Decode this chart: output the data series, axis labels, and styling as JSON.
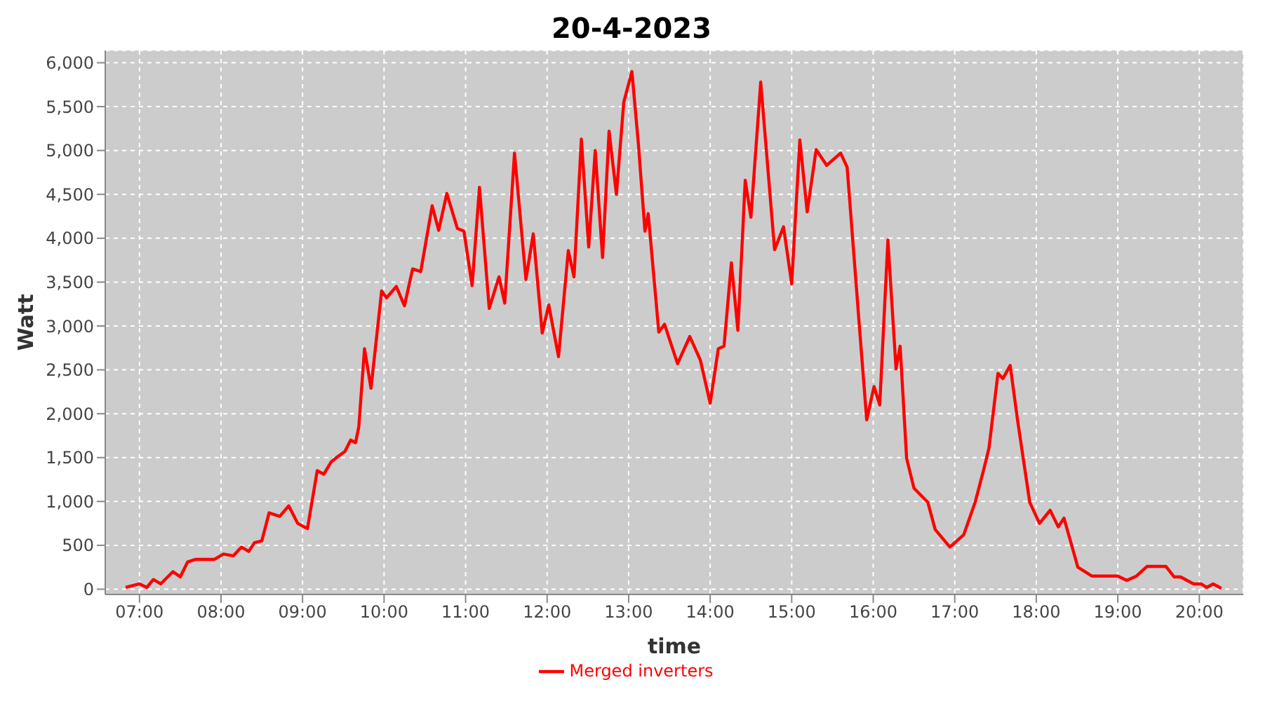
{
  "chart_data": {
    "type": "line",
    "title": "20-4-2023",
    "xlabel": "time",
    "ylabel": "Watt",
    "xlim": [
      6.58,
      20.54
    ],
    "ylim": [
      -60,
      6140
    ],
    "xticks": [
      {
        "value": 7,
        "label": "07:00"
      },
      {
        "value": 8,
        "label": "08:00"
      },
      {
        "value": 9,
        "label": "09:00"
      },
      {
        "value": 10,
        "label": "10:00"
      },
      {
        "value": 11,
        "label": "11:00"
      },
      {
        "value": 12,
        "label": "12:00"
      },
      {
        "value": 13,
        "label": "13:00"
      },
      {
        "value": 14,
        "label": "14:00"
      },
      {
        "value": 15,
        "label": "15:00"
      },
      {
        "value": 16,
        "label": "16:00"
      },
      {
        "value": 17,
        "label": "17:00"
      },
      {
        "value": 18,
        "label": "18:00"
      },
      {
        "value": 19,
        "label": "19:00"
      },
      {
        "value": 20,
        "label": "20:00"
      }
    ],
    "yticks": [
      0,
      500,
      {
        "value": 1000,
        "label": "1,000"
      },
      {
        "value": 1500,
        "label": "1,500"
      },
      {
        "value": 2000,
        "label": "2,000"
      },
      {
        "value": 2500,
        "label": "2,500"
      },
      {
        "value": 3000,
        "label": "3,000"
      },
      {
        "value": 3500,
        "label": "3,500"
      },
      {
        "value": 4000,
        "label": "4,000"
      },
      {
        "value": 4500,
        "label": "4,500"
      },
      {
        "value": 5000,
        "label": "5,000"
      },
      {
        "value": 5500,
        "label": "5,500"
      },
      {
        "value": 6000,
        "label": "6,000"
      }
    ],
    "grid": true,
    "legend": "bottom",
    "marker": "none",
    "line_style": "solid",
    "x": [
      6.83,
      7.0,
      7.09,
      7.17,
      7.26,
      7.41,
      7.5,
      7.59,
      7.69,
      7.92,
      8.03,
      8.15,
      8.25,
      8.34,
      8.41,
      8.5,
      8.59,
      8.72,
      8.83,
      8.94,
      9.06,
      9.18,
      9.26,
      9.35,
      9.43,
      9.52,
      9.59,
      9.65,
      9.69,
      9.76,
      9.84,
      9.97,
      10.03,
      10.15,
      10.25,
      10.35,
      10.45,
      10.59,
      10.67,
      10.77,
      10.9,
      10.98,
      11.08,
      11.17,
      11.29,
      11.41,
      11.48,
      11.6,
      11.74,
      11.83,
      11.94,
      12.02,
      12.14,
      12.26,
      12.33,
      12.42,
      12.51,
      12.59,
      12.68,
      12.76,
      12.85,
      12.94,
      13.04,
      13.12,
      13.2,
      13.24,
      13.37,
      13.44,
      13.6,
      13.75,
      13.88,
      14.0,
      14.1,
      14.17,
      14.26,
      14.34,
      14.43,
      14.5,
      14.62,
      14.79,
      14.9,
      15.0,
      15.1,
      15.19,
      15.3,
      15.43,
      15.6,
      15.68,
      15.84,
      15.92,
      16.01,
      16.08,
      16.18,
      16.28,
      16.33,
      16.41,
      16.5,
      16.67,
      16.76,
      16.94,
      17.11,
      17.25,
      17.36,
      17.42,
      17.53,
      17.59,
      17.68,
      17.77,
      17.92,
      18.04,
      18.17,
      18.27,
      18.34,
      18.51,
      18.68,
      19.0,
      19.11,
      19.23,
      19.36,
      19.59,
      19.69,
      19.77,
      19.93,
      20.02,
      20.09,
      20.17,
      20.27
    ],
    "series": [
      {
        "name": "Merged inverters",
        "color": "#ff0000",
        "values": [
          20,
          60,
          20,
          110,
          60,
          200,
          140,
          310,
          340,
          340,
          400,
          380,
          480,
          430,
          530,
          550,
          870,
          830,
          950,
          750,
          690,
          1350,
          1310,
          1450,
          1510,
          1570,
          1700,
          1670,
          1850,
          2740,
          2290,
          3400,
          3320,
          3450,
          3230,
          3650,
          3620,
          4370,
          4090,
          4510,
          4110,
          4080,
          3460,
          4580,
          3200,
          3560,
          3260,
          4970,
          3530,
          4050,
          2920,
          3240,
          2650,
          3860,
          3560,
          5130,
          3900,
          5000,
          3780,
          5220,
          4500,
          5550,
          5900,
          5070,
          4080,
          4280,
          2930,
          3020,
          2570,
          2880,
          2610,
          2120,
          2740,
          2770,
          3720,
          2950,
          4660,
          4240,
          5780,
          3870,
          4130,
          3480,
          5120,
          4300,
          5010,
          4830,
          4970,
          4810,
          2880,
          1930,
          2310,
          2100,
          3980,
          2510,
          2770,
          1490,
          1150,
          990,
          680,
          480,
          620,
          990,
          1380,
          1610,
          2460,
          2400,
          2550,
          1930,
          990,
          750,
          900,
          710,
          810,
          250,
          150,
          150,
          100,
          150,
          260,
          260,
          140,
          140,
          60,
          60,
          20,
          60,
          10
        ]
      }
    ]
  }
}
